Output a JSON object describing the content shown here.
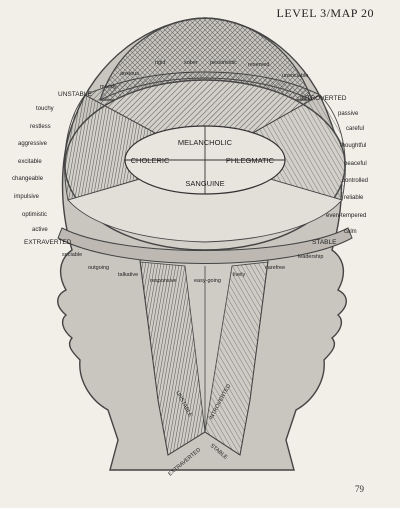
{
  "header": {
    "title": "LEVEL 3/MAP 20"
  },
  "page_number": "79",
  "temperaments": {
    "top": "MELANCHOLIC",
    "left": "CHOLERIC",
    "right": "PHLEGMATIC",
    "bottom": "SANGUINE"
  },
  "axes": {
    "unstable": "UNSTABLE",
    "introverted": "INTROVERTED",
    "extraverted": "EXTRAVERTED",
    "stable": "STABLE"
  },
  "neck": {
    "unstable": "UNSTABLE",
    "introverted": "INTROVERTED",
    "extraverted": "EXTRAVERTED",
    "stable": "STABLE"
  },
  "traits": {
    "top": [
      "moody",
      "anxious",
      "rigid",
      "sober",
      "pessimistic",
      "reserved",
      "unsociable"
    ],
    "left": [
      "touchy",
      "restless",
      "aggressive",
      "excitable",
      "changeable",
      "impulsive",
      "optimistic",
      "active"
    ],
    "right": [
      "passive",
      "careful",
      "thoughtful",
      "peaceful",
      "controlled",
      "reliable",
      "even-tempered",
      "calm"
    ],
    "bottom": [
      "sociable",
      "outgoing",
      "talkative",
      "responsive",
      "easy-going",
      "lively",
      "carefree",
      "leadership"
    ]
  }
}
